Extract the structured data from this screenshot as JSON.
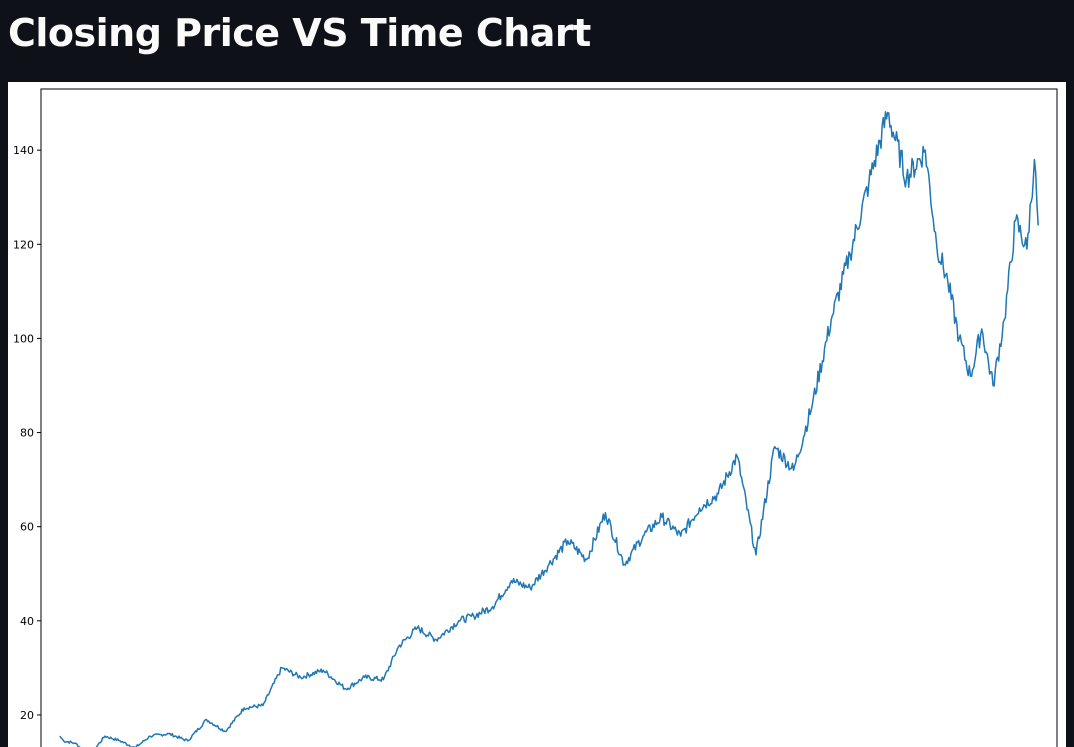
{
  "header": {
    "title": "Closing Price VS Time Chart"
  },
  "chart_data": {
    "type": "line",
    "title": "",
    "xlabel": "",
    "ylabel": "",
    "ylim": [
      10,
      153
    ],
    "xlim": [
      -50,
      2650
    ],
    "grid": false,
    "legend": "none",
    "line_color": "#1f77b4",
    "yticks": [
      20,
      40,
      60,
      80,
      100,
      120,
      140
    ],
    "ytick_labels": [
      "20",
      "40",
      "60",
      "80",
      "100",
      "120",
      "140"
    ],
    "series": [
      {
        "x": [
          0,
          10,
          40,
          80,
          120,
          160,
          200,
          240,
          290,
          340,
          390,
          440,
          490,
          540,
          590,
          640,
          700,
          760,
          810,
          860,
          900,
          950,
          1000,
          1060,
          1100,
          1150,
          1200,
          1250,
          1300,
          1350,
          1400,
          1450,
          1500,
          1550,
          1600,
          1650,
          1700,
          1750,
          1800,
          1850,
          1900,
          1950,
          2000,
          2050,
          2100,
          2150,
          2200,
          2250,
          2300,
          2330,
          2360,
          2390,
          2420,
          2450,
          2480,
          2510,
          2540,
          2570,
          2590,
          2600
        ],
        "y": [
          15.5,
          14.5,
          14.0,
          11.5,
          15.5,
          14.5,
          13.0,
          15.5,
          16.0,
          14.5,
          19.0,
          16.5,
          21.5,
          22.0,
          30.0,
          28.0,
          29.5,
          25.5,
          28.0,
          27.5,
          34.5,
          38.5,
          36.0,
          40.0,
          41.0,
          43.0,
          48.5,
          47.0,
          52.0,
          57.0,
          53.0,
          63.0,
          52.0,
          58.0,
          62.0,
          58.0,
          64.0,
          67.0,
          75.0,
          54.0,
          77.0,
          72.0,
          86.0,
          104.0,
          118.0,
          133.0,
          148.0,
          134.0,
          140.0,
          120.0,
          112.0,
          100.0,
          92.0,
          102.0,
          90.0,
          104.0,
          125.0,
          119.0,
          138.0,
          124.0
        ]
      }
    ]
  }
}
